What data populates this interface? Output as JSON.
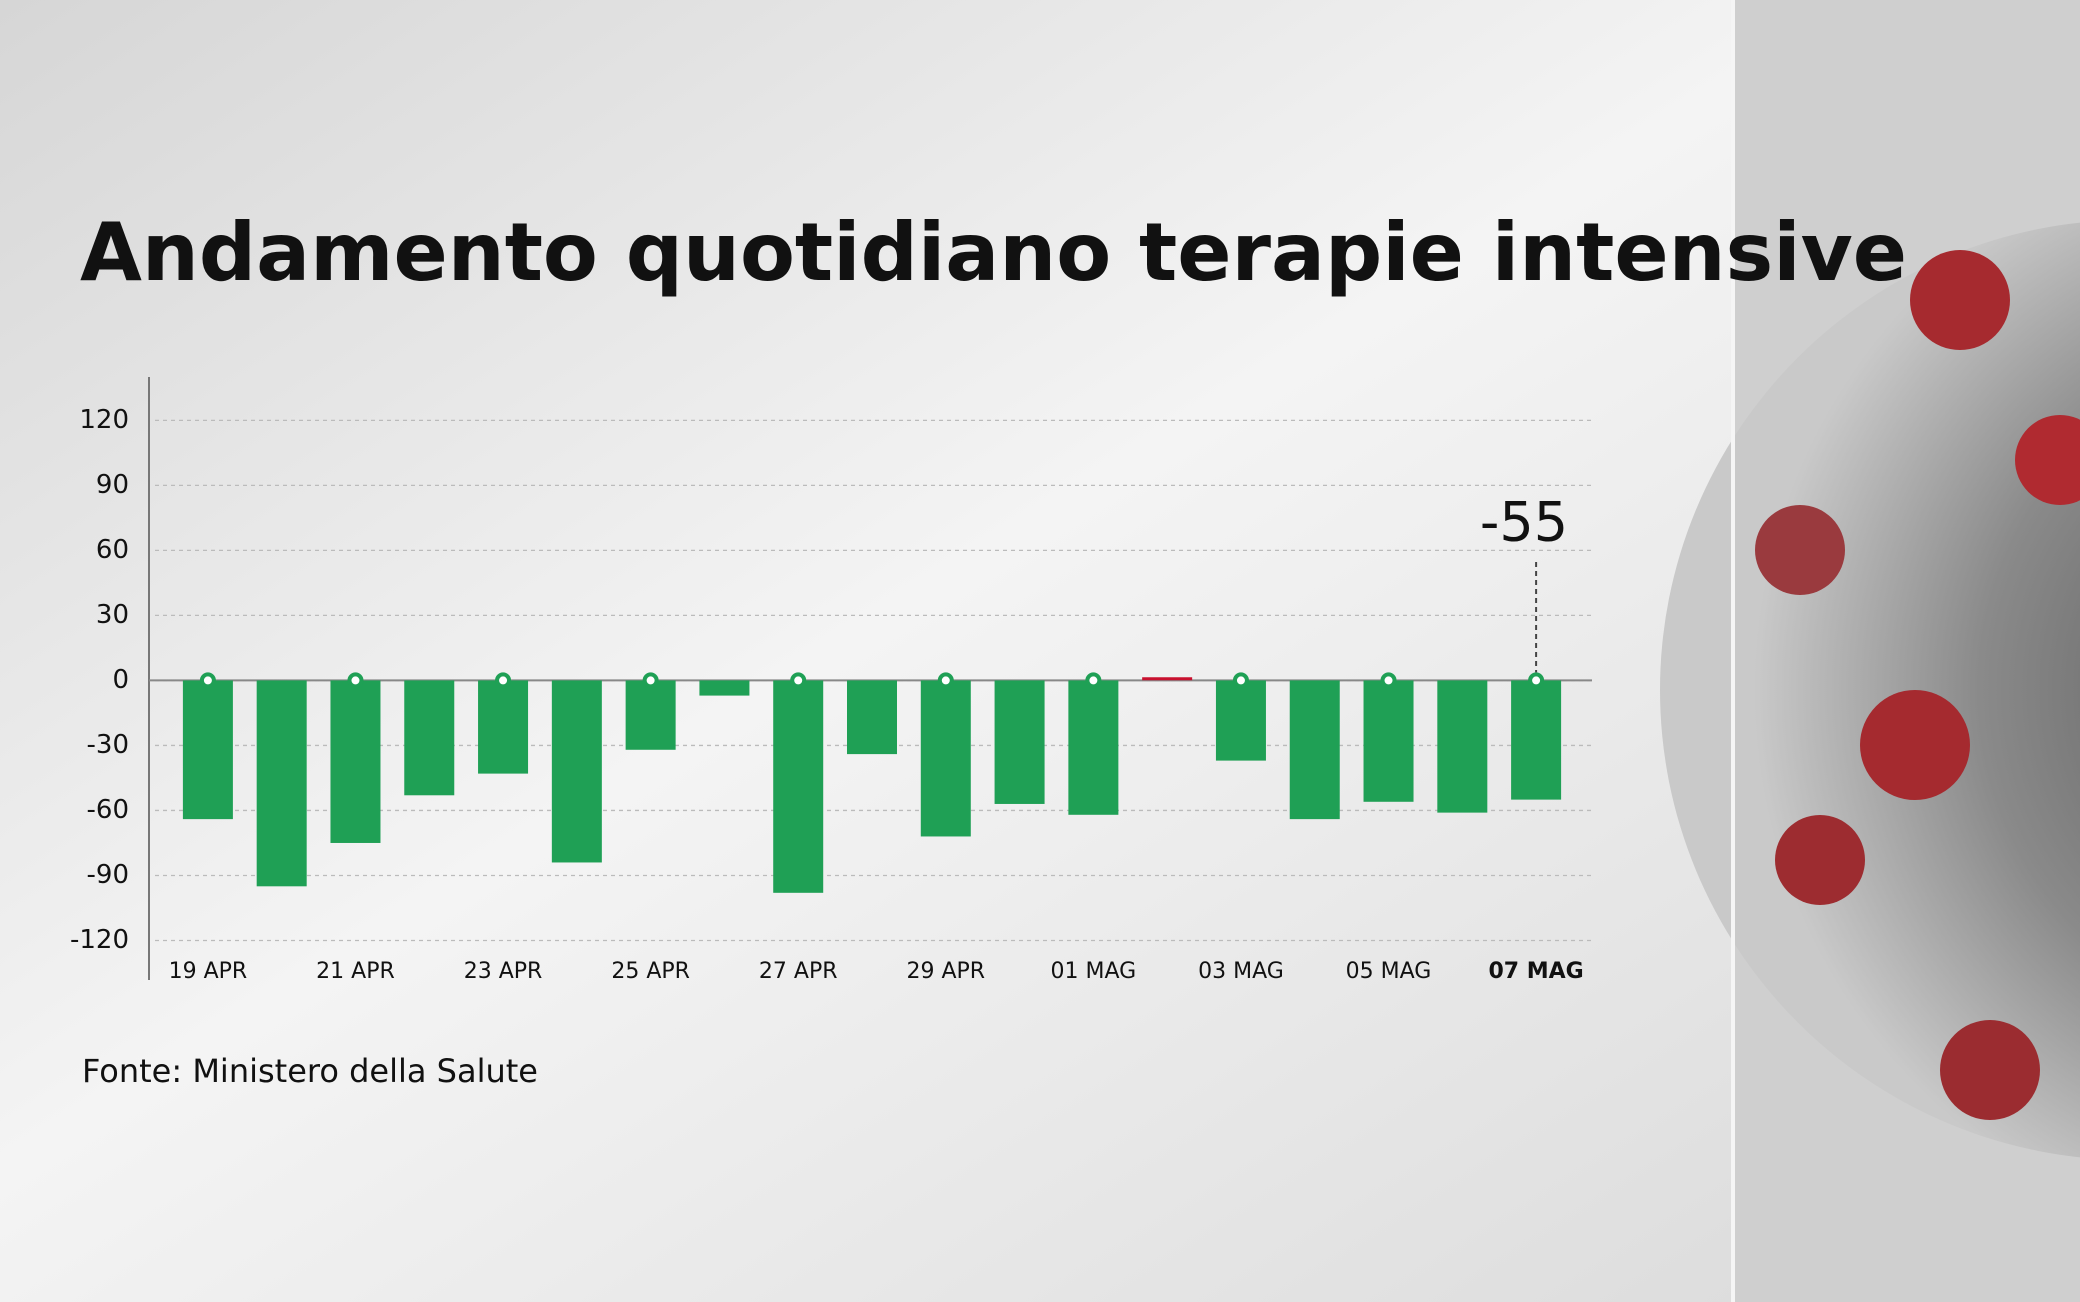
{
  "chart_data": {
    "type": "bar",
    "title": "Andamento quotidiano terapie intensive",
    "source": "Fonte: Ministero della Salute",
    "categories": [
      "19 APR",
      null,
      "21 APR",
      null,
      "23 APR",
      null,
      "25 APR",
      null,
      "27 APR",
      null,
      "29 APR",
      null,
      "01 MAG",
      null,
      "03 MAG",
      null,
      "05 MAG",
      null,
      "07 MAG"
    ],
    "values": [
      -64,
      -95,
      -75,
      -53,
      -43,
      -84,
      -32,
      -7,
      -98,
      -34,
      -72,
      -57,
      -62,
      1,
      -37,
      -64,
      -56,
      -61,
      -55
    ],
    "color": "#1fa055",
    "positive_color": "#c8102e",
    "annotation_color": "#c8102e",
    "ylim": [
      -135,
      140
    ],
    "yticks": [
      -120,
      -90,
      -60,
      -30,
      0,
      30,
      60,
      90,
      120
    ],
    "grid": true
  }
}
